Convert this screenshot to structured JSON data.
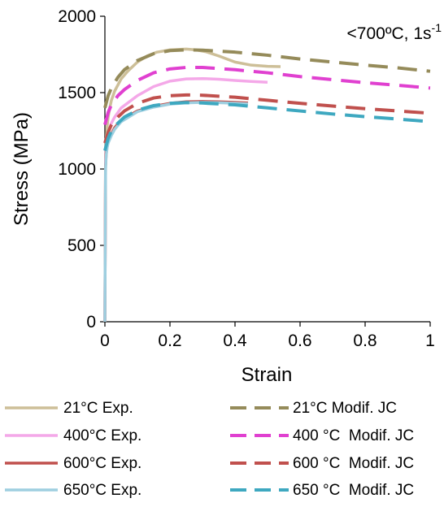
{
  "chart_data": {
    "type": "line",
    "annotation": "<700ºC, 1s",
    "annotation_superscript": "-1",
    "xlabel": "Strain",
    "ylabel": "Stress (MPa)",
    "xlim": [
      0,
      1
    ],
    "ylim": [
      0,
      2000
    ],
    "x_ticks": [
      0,
      0.2,
      0.4,
      0.6,
      0.8,
      1
    ],
    "x_tick_labels": [
      "0",
      "0.2",
      "0.4",
      "0.6",
      "0.8",
      "1"
    ],
    "y_ticks": [
      0,
      500,
      1000,
      1500,
      2000
    ],
    "y_tick_labels": [
      "0",
      "500",
      "1000",
      "1500",
      "2000"
    ],
    "grid": false,
    "legend_position": "bottom",
    "series": [
      {
        "name": "21°C Exp.",
        "style": "solid",
        "color": "#cdbf98",
        "x": [
          0,
          0.002,
          0.004,
          0.007,
          0.01,
          0.015,
          0.02,
          0.03,
          0.05,
          0.07,
          0.1,
          0.13,
          0.16,
          0.2,
          0.25,
          0.28,
          0.31,
          0.35,
          0.4,
          0.45,
          0.5,
          0.54
        ],
        "y": [
          0,
          1100,
          1200,
          1280,
          1340,
          1400,
          1450,
          1510,
          1590,
          1640,
          1700,
          1740,
          1765,
          1780,
          1785,
          1780,
          1768,
          1740,
          1700,
          1680,
          1672,
          1670
        ]
      },
      {
        "name": "400°C Exp.",
        "style": "solid",
        "color": "#f4a8e8",
        "x": [
          0,
          0.002,
          0.004,
          0.007,
          0.01,
          0.02,
          0.03,
          0.05,
          0.1,
          0.15,
          0.2,
          0.25,
          0.3,
          0.35,
          0.4,
          0.45,
          0.5
        ],
        "y": [
          0,
          1050,
          1150,
          1210,
          1240,
          1300,
          1340,
          1400,
          1480,
          1540,
          1575,
          1590,
          1592,
          1588,
          1580,
          1573,
          1568
        ]
      },
      {
        "name": "600°C Exp.",
        "style": "solid",
        "color": "#c0504d",
        "x": [
          0,
          0.002,
          0.004,
          0.007,
          0.01,
          0.02,
          0.03,
          0.05,
          0.1,
          0.15,
          0.2,
          0.25,
          0.3,
          0.35,
          0.4,
          0.44
        ],
        "y": [
          0,
          1020,
          1100,
          1150,
          1180,
          1230,
          1270,
          1320,
          1380,
          1410,
          1430,
          1440,
          1442,
          1440,
          1436,
          1432
        ]
      },
      {
        "name": "650°C Exp.",
        "style": "solid",
        "color": "#9ecfe0",
        "x": [
          0,
          0.002,
          0.004,
          0.007,
          0.01,
          0.02,
          0.03,
          0.05,
          0.1,
          0.15,
          0.2,
          0.25,
          0.3,
          0.35,
          0.4,
          0.44
        ],
        "y": [
          0,
          1000,
          1090,
          1140,
          1170,
          1220,
          1260,
          1310,
          1375,
          1405,
          1425,
          1433,
          1436,
          1434,
          1430,
          1426
        ]
      },
      {
        "name": "21°C Modif. JC",
        "style": "dashed",
        "color": "#958b5a",
        "x": [
          0,
          0.01,
          0.02,
          0.04,
          0.06,
          0.1,
          0.15,
          0.2,
          0.25,
          0.3,
          0.4,
          0.5,
          0.6,
          0.7,
          0.8,
          0.9,
          1.0
        ],
        "y": [
          1400,
          1480,
          1530,
          1600,
          1650,
          1710,
          1755,
          1775,
          1780,
          1778,
          1765,
          1745,
          1720,
          1700,
          1680,
          1662,
          1640
        ]
      },
      {
        "name": "400 °C  Modif. JC",
        "style": "dashed",
        "color": "#e040d0",
        "x": [
          0,
          0.01,
          0.02,
          0.04,
          0.06,
          0.1,
          0.15,
          0.2,
          0.25,
          0.3,
          0.4,
          0.5,
          0.6,
          0.7,
          0.8,
          0.9,
          1.0
        ],
        "y": [
          1290,
          1370,
          1420,
          1480,
          1520,
          1580,
          1630,
          1655,
          1665,
          1665,
          1650,
          1630,
          1605,
          1585,
          1565,
          1548,
          1530
        ]
      },
      {
        "name": "600 °C  Modif. JC",
        "style": "dashed",
        "color": "#c0504d",
        "x": [
          0,
          0.01,
          0.02,
          0.04,
          0.06,
          0.1,
          0.15,
          0.2,
          0.25,
          0.3,
          0.4,
          0.5,
          0.6,
          0.7,
          0.8,
          0.9,
          1.0
        ],
        "y": [
          1170,
          1240,
          1290,
          1340,
          1380,
          1430,
          1465,
          1480,
          1485,
          1483,
          1470,
          1450,
          1430,
          1412,
          1395,
          1380,
          1365
        ]
      },
      {
        "name": "650 °C  Modif. JC",
        "style": "dashed",
        "color": "#3ea8c0",
        "x": [
          0,
          0.01,
          0.02,
          0.04,
          0.06,
          0.1,
          0.15,
          0.2,
          0.25,
          0.3,
          0.4,
          0.5,
          0.6,
          0.7,
          0.8,
          0.9,
          1.0
        ],
        "y": [
          1120,
          1200,
          1250,
          1300,
          1340,
          1385,
          1415,
          1430,
          1435,
          1432,
          1420,
          1400,
          1380,
          1360,
          1343,
          1327,
          1310
        ]
      }
    ]
  }
}
